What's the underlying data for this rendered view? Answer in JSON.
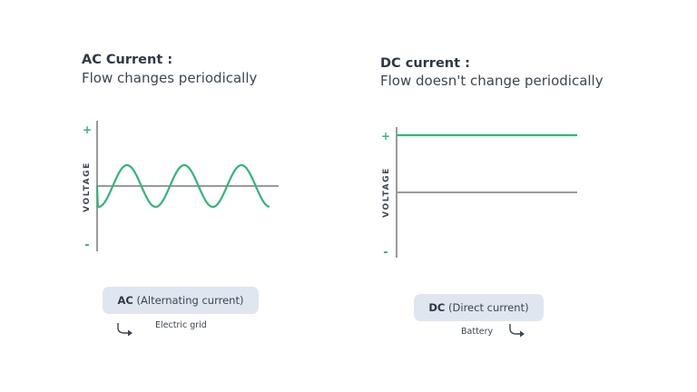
{
  "colors": {
    "wave": "#33b47e",
    "axis": "#9a9a9a",
    "pill_background": "#dfe6ef",
    "text": "#2f3845"
  },
  "ac": {
    "title": "AC Current :",
    "subtitle": "Flow changes periodically",
    "axis_label": "VOLTAGE",
    "plus_label": "+",
    "minus_label": "-",
    "pill_abbr": "AC",
    "pill_text": "(Alternating current)",
    "example": "Electric grid",
    "arrow_icon": "curved-arrow-right-icon",
    "waveform": "sine",
    "cycles": 3
  },
  "dc": {
    "title": "DC current :",
    "subtitle": "Flow doesn't change periodically",
    "axis_label": "VOLTAGE",
    "plus_label": "+",
    "minus_label": "-",
    "pill_abbr": "DC",
    "pill_text": "(Direct current)",
    "example": "Battery",
    "arrow_icon": "curved-arrow-right-icon",
    "waveform": "constant-positive"
  }
}
